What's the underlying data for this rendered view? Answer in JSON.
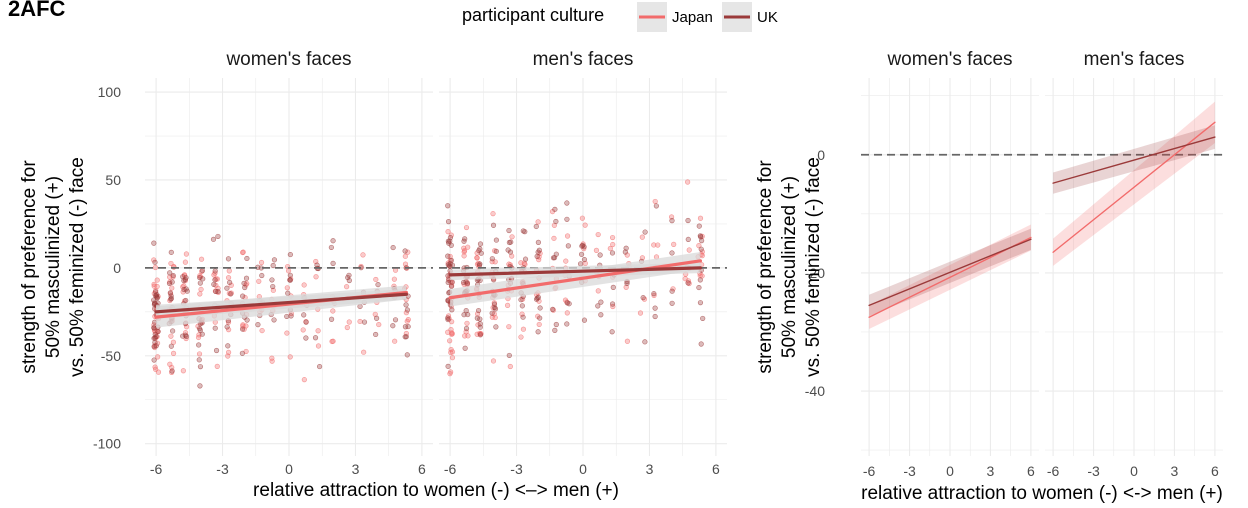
{
  "title": "2AFC",
  "legend": {
    "title": "participant culture",
    "entries": [
      {
        "label": "Japan",
        "color": "#f26b6b"
      },
      {
        "label": "UK",
        "color": "#9b3a3a"
      }
    ]
  },
  "colors": {
    "Japan": "#f26b6b",
    "UK": "#9b3a3a",
    "band": "#d9d9d9",
    "grid": "#ebebeb",
    "reference_line": "#666666"
  },
  "chart_data": [
    {
      "type": "scatter",
      "xlabel": "relative attraction to women (-) <–> men (+)",
      "ylabel_lines": [
        "strength of preference for",
        "50% masculinized (+)",
        "vs. 50% feminized (-) face"
      ],
      "xlim": [
        -6.5,
        6.5
      ],
      "ylim": [
        -107,
        108
      ],
      "x_ticks": [
        -6,
        -3,
        0,
        3,
        6
      ],
      "y_ticks": [
        100,
        50,
        0,
        -50,
        -100
      ],
      "x_tick_labels": [
        "-6",
        "-3",
        "0",
        "3",
        "6"
      ],
      "y_tick_labels": [
        "100",
        "50",
        "0",
        "-50",
        "-100"
      ],
      "reference_y": 0,
      "grid": true,
      "facets": [
        {
          "label": "women's faces",
          "fits": [
            {
              "name": "Japan",
              "x": [
                -6,
                5.3
              ],
              "y": [
                -28,
                -14
              ],
              "band": [
                6,
                4
              ]
            },
            {
              "name": "UK",
              "x": [
                -6,
                5.3
              ],
              "y": [
                -25,
                -15
              ],
              "band": [
                4,
                3
              ]
            }
          ]
        },
        {
          "label": "men's faces",
          "fits": [
            {
              "name": "Japan",
              "x": [
                -6,
                5.3
              ],
              "y": [
                -17,
                4
              ],
              "band": [
                5,
                5
              ]
            },
            {
              "name": "UK",
              "x": [
                -6,
                5.3
              ],
              "y": [
                -4,
                0
              ],
              "band": [
                3,
                3
              ]
            }
          ]
        }
      ],
      "scatter_x_levels": [
        -6,
        -5.3,
        -4.7,
        -4,
        -3.3,
        -2.7,
        -2,
        -1.3,
        -0.7,
        0,
        0.7,
        1.3,
        2,
        2.7,
        3.3,
        4,
        4.7,
        5.3
      ],
      "scatter_counts": [
        40,
        24,
        22,
        18,
        16,
        14,
        14,
        10,
        9,
        10,
        8,
        7,
        6,
        5,
        6,
        5,
        8,
        14
      ]
    },
    {
      "type": "line",
      "xlabel": "relative attraction to women (-) <-> men (+)",
      "ylabel_lines": [
        "strength of preference for",
        "50% masculinized (+)",
        "vs. 50% feminized (-) face"
      ],
      "xlim": [
        -6.6,
        6.6
      ],
      "ylim": [
        -51,
        13
      ],
      "x_ticks": [
        -6,
        -3,
        0,
        3,
        6
      ],
      "y_ticks": [
        0,
        -20,
        -40
      ],
      "x_tick_labels": [
        "-6",
        "-3",
        "0",
        "3",
        "6"
      ],
      "y_tick_labels": [
        "0",
        "-20",
        "-40"
      ],
      "reference_y": 0,
      "grid": true,
      "facets": [
        {
          "label": "women's faces",
          "fits": [
            {
              "name": "Japan",
              "x": [
                -6,
                6
              ],
              "y": [
                -27.5,
                -14
              ],
              "band": [
                2.0,
                2.2
              ]
            },
            {
              "name": "UK",
              "x": [
                -6,
                6
              ],
              "y": [
                -25.5,
                -14.3
              ],
              "band": [
                1.8,
                1.8
              ]
            }
          ]
        },
        {
          "label": "men's faces",
          "fits": [
            {
              "name": "Japan",
              "x": [
                -6,
                6
              ],
              "y": [
                -16.5,
                5.5
              ],
              "band": [
                2.3,
                3.5
              ]
            },
            {
              "name": "UK",
              "x": [
                -6,
                6
              ],
              "y": [
                -4.8,
                3
              ],
              "band": [
                1.8,
                2.0
              ]
            }
          ]
        }
      ]
    }
  ]
}
